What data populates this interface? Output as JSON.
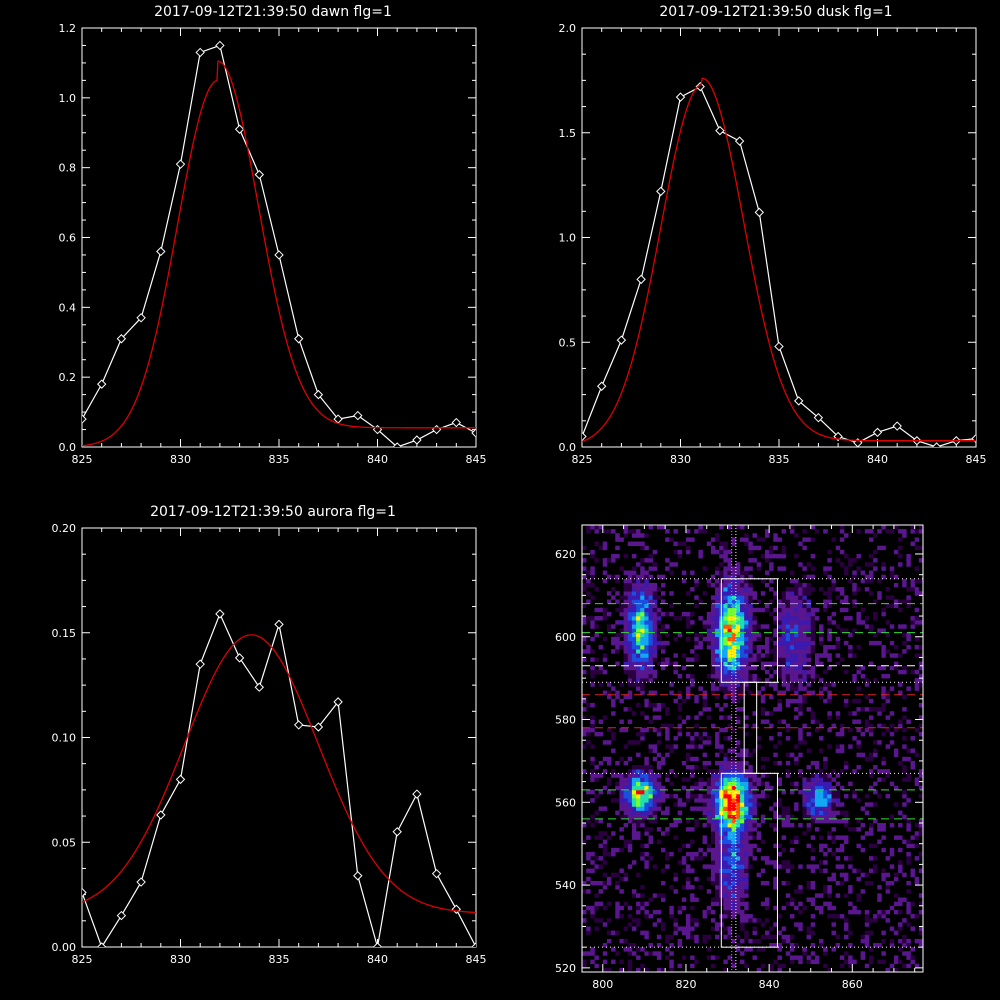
{
  "chart_data": [
    {
      "type": "line",
      "title": "2017-09-12T21:39:50 dawn flg=1",
      "xlim": [
        825,
        845
      ],
      "ylim": [
        0,
        1.2
      ],
      "xticks": [
        825,
        830,
        835,
        840,
        845
      ],
      "xtick_labels": [
        "825",
        "830",
        "835",
        "840",
        "845"
      ],
      "yticks": [
        0,
        0.2,
        0.4,
        0.6,
        0.8,
        1.0,
        1.2
      ],
      "ytick_labels": [
        "0.0",
        "0.2",
        "0.4",
        "0.6",
        "0.8",
        "1.0",
        "1.2"
      ],
      "series": [
        {
          "style": "data",
          "color": "#ffffff",
          "marker": "diamond",
          "x": [
            825,
            826,
            827,
            828,
            829,
            830,
            831,
            832,
            833,
            834,
            835,
            836,
            837,
            838,
            839,
            840,
            841,
            842,
            843,
            844,
            845
          ],
          "y": [
            0.08,
            0.18,
            0.31,
            0.37,
            0.56,
            0.81,
            1.13,
            1.15,
            0.91,
            0.78,
            0.55,
            0.31,
            0.15,
            0.08,
            0.09,
            0.05,
            0.0,
            0.02,
            0.05,
            0.07,
            0.04
          ]
        },
        {
          "style": "fit",
          "color": "#dd0000",
          "gauss": {
            "amp": 1.05,
            "center": 831.9,
            "sigma": 2.05,
            "base": 0.055,
            "left_base": 0.0
          }
        }
      ]
    },
    {
      "type": "line",
      "title": "2017-09-12T21:39:50 dusk flg=1",
      "xlim": [
        825,
        845
      ],
      "ylim": [
        0,
        2.0
      ],
      "xticks": [
        825,
        830,
        835,
        840,
        845
      ],
      "xtick_labels": [
        "825",
        "830",
        "835",
        "840",
        "845"
      ],
      "yticks": [
        0,
        0.5,
        1.0,
        1.5,
        2.0
      ],
      "ytick_labels": [
        "0.0",
        "0.5",
        "1.0",
        "1.5",
        "2.0"
      ],
      "series": [
        {
          "style": "data",
          "color": "#ffffff",
          "marker": "diamond",
          "x": [
            825,
            826,
            827,
            828,
            829,
            830,
            831,
            832,
            833,
            834,
            835,
            836,
            837,
            838,
            839,
            840,
            841,
            842,
            843,
            844,
            845
          ],
          "y": [
            0.05,
            0.29,
            0.51,
            0.8,
            1.22,
            1.67,
            1.72,
            1.51,
            1.46,
            1.12,
            0.48,
            0.22,
            0.14,
            0.05,
            0.02,
            0.07,
            0.1,
            0.03,
            0.0,
            0.03,
            0.04
          ]
        },
        {
          "style": "fit",
          "color": "#dd0000",
          "gauss": {
            "amp": 1.73,
            "center": 831.1,
            "sigma": 2.1,
            "base": 0.03,
            "left_base": 0.0
          }
        }
      ]
    },
    {
      "type": "line",
      "title": "2017-09-12T21:39:50 aurora flg=1",
      "xlim": [
        825,
        845
      ],
      "ylim": [
        0,
        0.2
      ],
      "xticks": [
        825,
        830,
        835,
        840,
        845
      ],
      "xtick_labels": [
        "825",
        "830",
        "835",
        "840",
        "845"
      ],
      "yticks": [
        0,
        0.05,
        0.1,
        0.15,
        0.2
      ],
      "ytick_labels": [
        "0.00",
        "0.05",
        "0.10",
        "0.15",
        "0.20"
      ],
      "series": [
        {
          "style": "data",
          "color": "#ffffff",
          "marker": "diamond",
          "x": [
            825,
            826,
            827,
            828,
            829,
            830,
            831,
            832,
            833,
            834,
            835,
            836,
            837,
            838,
            839,
            840,
            841,
            842,
            843,
            844,
            845
          ],
          "y": [
            0.026,
            0.0,
            0.015,
            0.031,
            0.063,
            0.08,
            0.135,
            0.159,
            0.138,
            0.124,
            0.154,
            0.106,
            0.105,
            0.117,
            0.034,
            0.0,
            0.055,
            0.073,
            0.035,
            0.018,
            0.0
          ]
        },
        {
          "style": "fit",
          "color": "#dd0000",
          "gauss": {
            "amp": 0.133,
            "center": 833.6,
            "sigma": 3.4,
            "base": 0.016,
            "left_base": 0.016
          }
        }
      ]
    },
    {
      "type": "heatmap",
      "xlim": [
        795,
        877
      ],
      "ylim": [
        519,
        627
      ],
      "xticks": [
        800,
        820,
        840,
        860
      ],
      "xtick_labels": [
        "800",
        "820",
        "840",
        "860"
      ],
      "yticks": [
        520,
        540,
        560,
        580,
        600,
        620
      ],
      "ytick_labels": [
        "520",
        "540",
        "560",
        "580",
        "600",
        "620"
      ],
      "colormap": [
        "#2a0040",
        "#5a168f",
        "#3a1ab0",
        "#1b4fe0",
        "#12a8f2",
        "#20e0b0",
        "#70ff30",
        "#ffee00",
        "#ff5500",
        "#ff0000"
      ],
      "blobs": [
        {
          "x": 809,
          "y": 602,
          "sx": 2.2,
          "sy": 6.5,
          "amp": 0.55
        },
        {
          "x": 809,
          "y": 562,
          "sx": 2.4,
          "sy": 3.0,
          "amp": 0.75
        },
        {
          "x": 831,
          "y": 601,
          "sx": 2.5,
          "sy": 7.0,
          "amp": 0.78
        },
        {
          "x": 831,
          "y": 560,
          "sx": 2.6,
          "sy": 4.5,
          "amp": 1.0
        },
        {
          "x": 831,
          "y": 545,
          "sx": 2.4,
          "sy": 7.0,
          "amp": 0.3
        },
        {
          "x": 852,
          "y": 561,
          "sx": 2.2,
          "sy": 3.0,
          "amp": 0.45
        },
        {
          "x": 846,
          "y": 600,
          "sx": 3.0,
          "sy": 8.0,
          "amp": 0.22
        }
      ],
      "hlines_dotted_white": [
        525,
        567,
        589,
        614
      ],
      "hlines_dashed_green": [
        556,
        563,
        601,
        608
      ],
      "hlines_dashed_white": [
        593
      ],
      "hlines_dashed_red": [
        578,
        586
      ],
      "vline_dotted_magenta": 831,
      "vline_dotted_white": 832,
      "boxes_white": [
        {
          "x0": 828.5,
          "x1": 842,
          "y0": 525,
          "y1": 567
        },
        {
          "x0": 828.5,
          "x1": 842,
          "y0": 589,
          "y1": 614
        },
        {
          "x0": 834,
          "x1": 837,
          "y0": 567,
          "y1": 589
        }
      ]
    }
  ]
}
